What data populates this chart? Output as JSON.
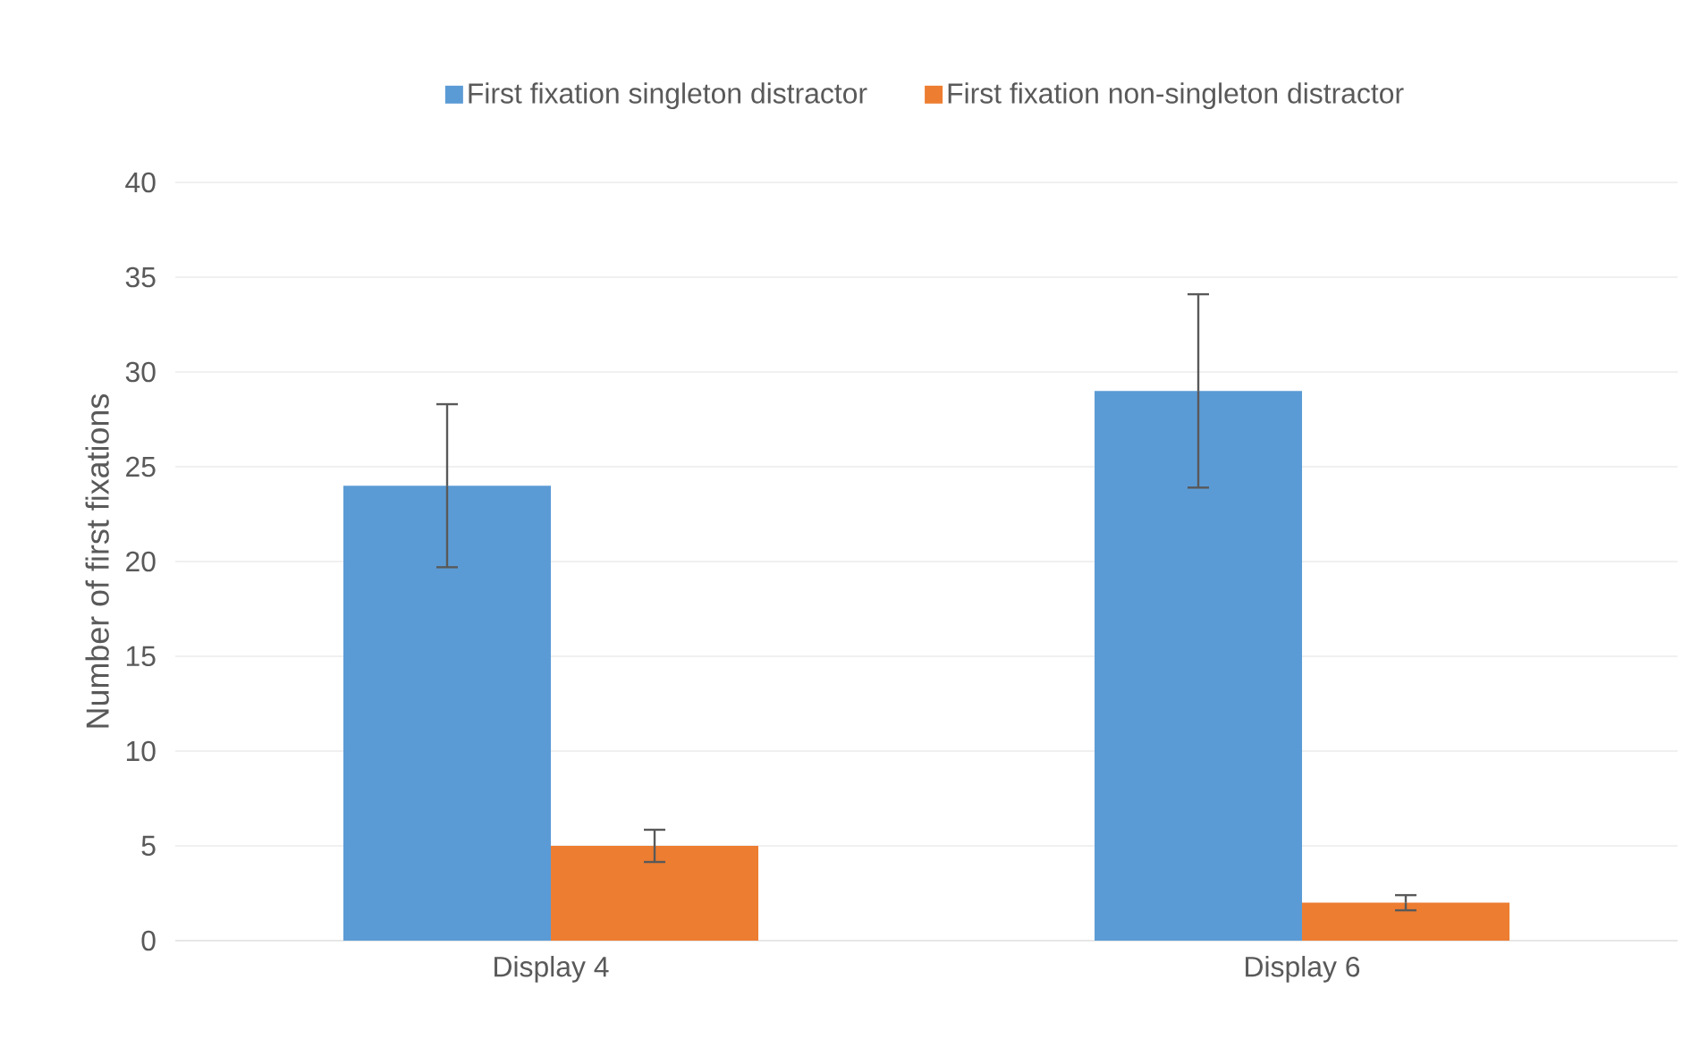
{
  "chart_data": {
    "type": "bar",
    "ylabel": "Number of first fixations",
    "categories": [
      "Display 4",
      "Display 6"
    ],
    "series": [
      {
        "name": "First fixation singleton distractor",
        "color": "#5b9bd5",
        "values": [
          24,
          29
        ],
        "errors": [
          4.3,
          5.1
        ]
      },
      {
        "name": "First fixation non-singleton distractor",
        "color": "#ed7d31",
        "values": [
          5,
          2
        ],
        "errors": [
          0.85,
          0.4
        ]
      }
    ],
    "ylim": [
      0,
      40
    ],
    "yticks": [
      0,
      5,
      10,
      15,
      20,
      25,
      30,
      35,
      40
    ],
    "grid": "y",
    "legend": "top"
  }
}
